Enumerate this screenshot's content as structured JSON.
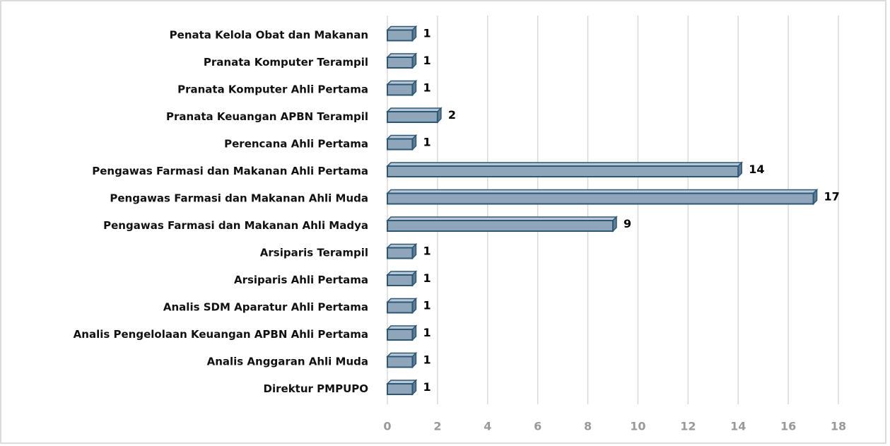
{
  "chart_data": {
    "type": "bar3d_horizontal",
    "categories": [
      "Penata Kelola Obat dan Makanan",
      "Pranata Komputer Terampil",
      "Pranata Komputer Ahli Pertama",
      "Pranata Keuangan APBN Terampil",
      "Perencana Ahli Pertama",
      "Pengawas Farmasi dan Makanan Ahli Pertama",
      "Pengawas Farmasi dan Makanan Ahli Muda",
      "Pengawas Farmasi dan Makanan Ahli Madya",
      "Arsiparis Terampil",
      "Arsiparis Ahli Pertama",
      "Analis SDM Aparatur Ahli Pertama",
      "Analis Pengelolaan Keuangan APBN Ahli Pertama",
      "Analis Anggaran Ahli Muda",
      "Direktur PMPUPO"
    ],
    "values": [
      1,
      1,
      1,
      2,
      1,
      14,
      17,
      9,
      1,
      1,
      1,
      1,
      1,
      1
    ],
    "color": "#8fa5ba",
    "edge_color": "#2d5875",
    "xlim": [
      0,
      18
    ],
    "xticks": [
      0,
      2,
      4,
      6,
      8,
      10,
      12,
      14,
      16,
      18
    ],
    "grid": true
  }
}
